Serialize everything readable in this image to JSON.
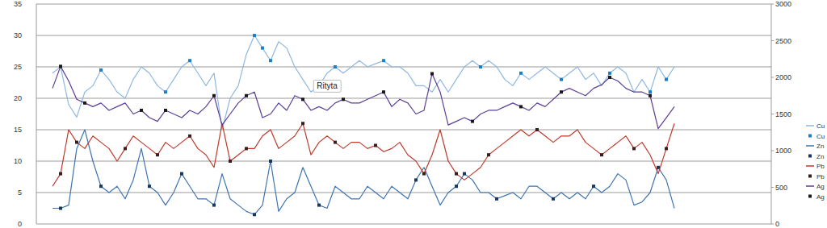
{
  "chart_data": {
    "type": "line",
    "x": [
      0,
      10,
      20,
      30,
      40,
      50,
      60,
      70,
      80,
      90,
      100,
      110,
      120,
      130,
      140,
      150,
      160,
      170,
      180,
      190,
      200,
      210,
      220,
      230,
      240,
      250,
      260,
      270,
      280,
      290,
      300,
      310,
      320,
      330,
      340,
      350,
      360,
      370,
      380,
      390,
      400,
      410,
      420,
      430,
      440,
      450,
      460,
      470,
      480,
      490,
      500,
      510,
      520,
      530,
      540,
      550,
      560,
      570,
      580,
      590,
      600,
      610,
      620,
      630,
      640,
      650,
      660,
      670,
      680,
      690,
      700,
      710,
      720,
      730,
      740,
      750,
      760,
      770
    ],
    "xlim": [
      -20,
      890
    ],
    "ylim": [
      0,
      35
    ],
    "yticks": [
      0,
      5,
      10,
      15,
      20,
      25,
      30,
      35
    ],
    "y2lim": [
      0,
      3000
    ],
    "y2ticks": [
      0,
      500,
      1000,
      1500,
      2000,
      2500,
      3000
    ],
    "grid": true,
    "legend": "right",
    "tick_labels": "y",
    "annotations": [
      {
        "text": "Rityta",
        "x": 340,
        "y": 22
      }
    ],
    "series": [
      {
        "name": "Cu",
        "type": "line",
        "color": "#8fb8e0",
        "marker": "none",
        "values": [
          24,
          25,
          19,
          17,
          21,
          22,
          24.5,
          23,
          21,
          20,
          23,
          25,
          24,
          22,
          21,
          23,
          25,
          26,
          24,
          22,
          24,
          15,
          20,
          22,
          27,
          30,
          28,
          26,
          29,
          28,
          25,
          23,
          21,
          22,
          24,
          25,
          24,
          25,
          26,
          25,
          25.5,
          26,
          25,
          25,
          24,
          22,
          22,
          21,
          23,
          21,
          23,
          25,
          26,
          25,
          26,
          25,
          23,
          22,
          24,
          23,
          24,
          25,
          24,
          23,
          24,
          25,
          23,
          24,
          22,
          24,
          25,
          24,
          21,
          23,
          21,
          25,
          23,
          25
        ]
      },
      {
        "name": "Cu",
        "type": "scatter",
        "color": "#1f7fc4",
        "marker": "square",
        "values": [
          null,
          null,
          null,
          null,
          null,
          null,
          24.5,
          null,
          null,
          null,
          null,
          null,
          null,
          null,
          21,
          null,
          null,
          26,
          null,
          null,
          null,
          null,
          null,
          null,
          null,
          30,
          28,
          26,
          null,
          null,
          null,
          null,
          null,
          null,
          null,
          25,
          null,
          null,
          null,
          null,
          null,
          26,
          null,
          null,
          null,
          null,
          null,
          null,
          null,
          null,
          null,
          null,
          null,
          25,
          null,
          null,
          null,
          null,
          24,
          null,
          null,
          null,
          null,
          23,
          null,
          null,
          null,
          null,
          null,
          24,
          null,
          null,
          null,
          null,
          21,
          null,
          23,
          null
        ]
      },
      {
        "name": "Zn",
        "type": "line",
        "color": "#3f74b0",
        "marker": "none",
        "values": [
          2.5,
          2.5,
          3,
          12,
          15,
          10,
          6,
          5,
          6,
          4,
          7,
          12,
          6,
          5,
          3,
          5,
          8,
          6,
          4,
          4,
          3,
          8,
          4,
          3,
          2,
          1.5,
          3,
          10,
          2,
          4,
          5,
          9,
          6,
          3,
          2.5,
          6,
          5,
          4,
          4,
          6,
          5,
          4,
          6,
          5,
          4,
          7,
          9,
          6,
          3,
          5,
          6,
          8,
          7,
          5,
          5,
          4,
          4.5,
          5,
          4,
          6,
          6,
          5,
          4,
          5,
          4,
          5,
          4,
          6,
          5,
          6,
          8,
          7,
          3,
          3.5,
          5,
          9,
          7,
          2.5
        ]
      },
      {
        "name": "Zn",
        "type": "scatter",
        "color": "#17375e",
        "marker": "square",
        "values": [
          null,
          2.5,
          null,
          null,
          null,
          null,
          6,
          null,
          null,
          null,
          null,
          null,
          6,
          null,
          null,
          null,
          8,
          null,
          null,
          null,
          3,
          null,
          null,
          null,
          null,
          1.5,
          null,
          10,
          null,
          null,
          null,
          null,
          null,
          3,
          null,
          null,
          null,
          null,
          null,
          null,
          null,
          null,
          null,
          null,
          null,
          7,
          null,
          null,
          null,
          null,
          6,
          8,
          null,
          null,
          null,
          4,
          null,
          null,
          null,
          null,
          null,
          null,
          4,
          null,
          null,
          null,
          null,
          6,
          null,
          null,
          null,
          null,
          null,
          null,
          null,
          9,
          null,
          null
        ]
      },
      {
        "name": "Pb",
        "type": "line",
        "color": "#c0392b",
        "marker": "none",
        "values": [
          6,
          8,
          15,
          13,
          12,
          14,
          13,
          12,
          10,
          12,
          14,
          13,
          12,
          11,
          13,
          12,
          13,
          14,
          12,
          11,
          9,
          16,
          10,
          11,
          12,
          12,
          14,
          15,
          12,
          13,
          14,
          16,
          11,
          13,
          14,
          13,
          12,
          13,
          13,
          12,
          12.5,
          11.5,
          12,
          13,
          11,
          10,
          8,
          11,
          15,
          10,
          8,
          7,
          8,
          9,
          11,
          12,
          13,
          14,
          15,
          14,
          15,
          14,
          13,
          14,
          14,
          15,
          13,
          12,
          11,
          12,
          13,
          14,
          12,
          13,
          11,
          8,
          12,
          16
        ]
      },
      {
        "name": "Pb",
        "type": "scatter",
        "color": "#3a1e1e",
        "marker": "square",
        "values": [
          null,
          8,
          null,
          13,
          null,
          null,
          null,
          null,
          null,
          12,
          null,
          null,
          null,
          11,
          null,
          null,
          null,
          14,
          null,
          null,
          null,
          null,
          10,
          null,
          12,
          null,
          null,
          null,
          null,
          null,
          null,
          16,
          null,
          null,
          null,
          13,
          null,
          null,
          null,
          null,
          12.5,
          null,
          null,
          null,
          null,
          null,
          8,
          null,
          null,
          null,
          8,
          null,
          null,
          null,
          11,
          null,
          null,
          null,
          null,
          null,
          15,
          null,
          null,
          null,
          null,
          null,
          null,
          null,
          11,
          null,
          null,
          null,
          12,
          null,
          null,
          null,
          12,
          null
        ]
      },
      {
        "name": "Ag",
        "type": "line",
        "color": "#5b3f95",
        "marker": "none",
        "axis": "y2",
        "values": [
          1850,
          2150,
          1950,
          1700,
          1650,
          1600,
          1650,
          1550,
          1600,
          1650,
          1500,
          1550,
          1450,
          1400,
          1550,
          1500,
          1450,
          1550,
          1500,
          1600,
          1750,
          1350,
          1500,
          1650,
          1750,
          1800,
          1450,
          1500,
          1650,
          1550,
          1750,
          1700,
          1550,
          1600,
          1550,
          1650,
          1700,
          1650,
          1650,
          1700,
          1750,
          1800,
          1600,
          1700,
          1650,
          1500,
          1550,
          2050,
          1800,
          1350,
          1400,
          1450,
          1400,
          1500,
          1550,
          1550,
          1600,
          1650,
          1600,
          1550,
          1650,
          1600,
          1700,
          1800,
          1850,
          1800,
          1750,
          1850,
          1900,
          2000,
          1950,
          1850,
          1800,
          1800,
          1750,
          1300,
          1450,
          1600
        ]
      },
      {
        "name": "Ag",
        "type": "scatter",
        "color": "#1a1a1a",
        "marker": "square",
        "axis": "y2",
        "values": [
          null,
          2150,
          null,
          null,
          1650,
          null,
          null,
          null,
          null,
          null,
          null,
          1550,
          null,
          null,
          1550,
          null,
          null,
          null,
          null,
          null,
          1750,
          null,
          null,
          null,
          1750,
          null,
          null,
          null,
          null,
          null,
          null,
          1700,
          null,
          null,
          null,
          null,
          1700,
          null,
          null,
          null,
          null,
          1800,
          null,
          null,
          null,
          null,
          null,
          2050,
          null,
          null,
          null,
          null,
          1400,
          null,
          null,
          null,
          null,
          null,
          1600,
          null,
          null,
          null,
          null,
          1800,
          null,
          null,
          null,
          null,
          null,
          2000,
          null,
          null,
          null,
          null,
          1750,
          null,
          null,
          null
        ]
      }
    ]
  }
}
